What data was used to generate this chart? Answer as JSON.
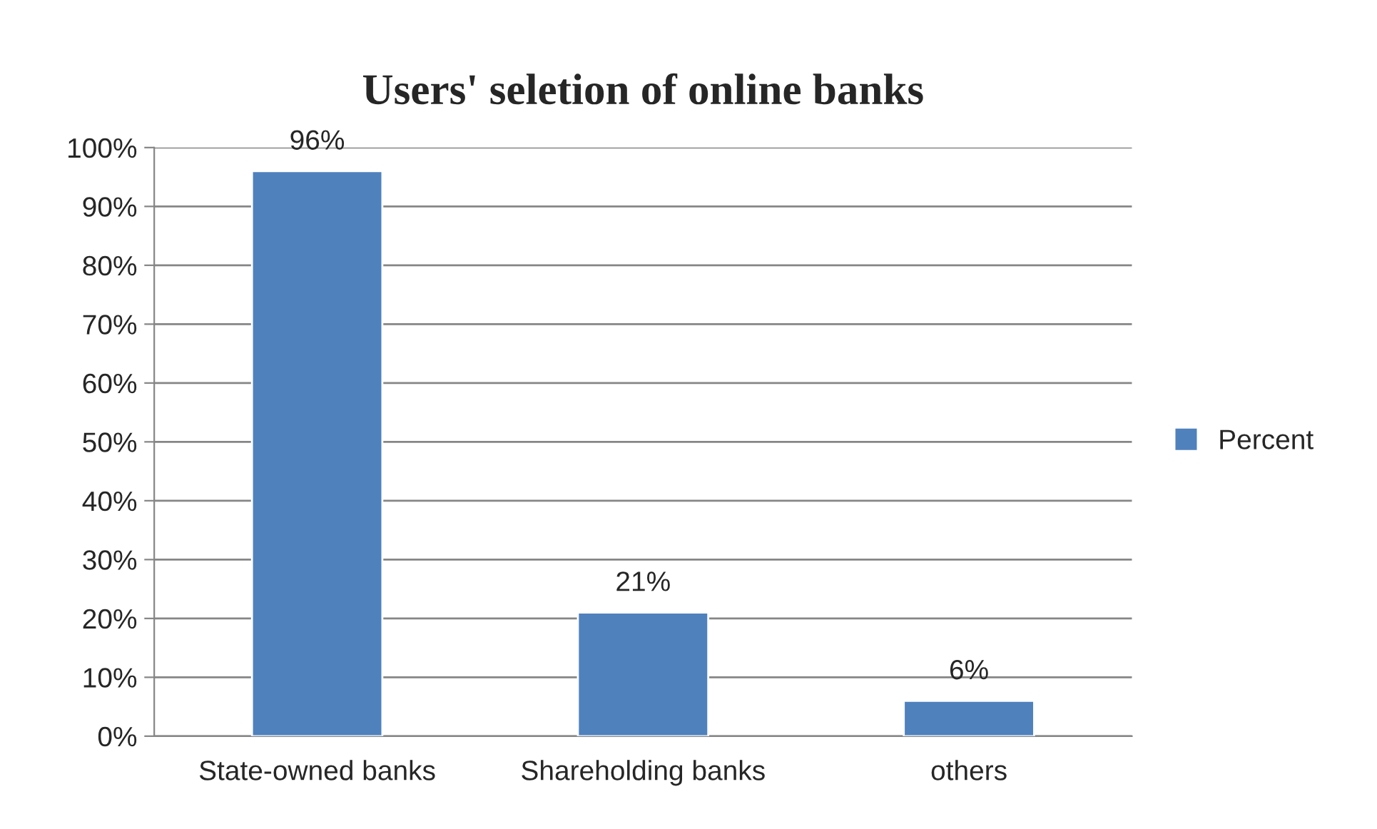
{
  "chart_data": {
    "type": "bar",
    "title": "Users' seletion of online banks",
    "categories": [
      "State-owned banks",
      "Shareholding banks",
      "others"
    ],
    "series": [
      {
        "name": "Percent",
        "color": "#4f81bd",
        "values": [
          96,
          21,
          6
        ],
        "value_labels": [
          "96%",
          "21%",
          "6%"
        ]
      }
    ],
    "ylim": [
      0,
      100
    ],
    "yticks": [
      {
        "value": 0,
        "label": "0%"
      },
      {
        "value": 10,
        "label": "10%"
      },
      {
        "value": 20,
        "label": "20%"
      },
      {
        "value": 30,
        "label": "30%"
      },
      {
        "value": 40,
        "label": "40%"
      },
      {
        "value": 50,
        "label": "50%"
      },
      {
        "value": 60,
        "label": "60%"
      },
      {
        "value": 70,
        "label": "70%"
      },
      {
        "value": 80,
        "label": "80%"
      },
      {
        "value": 90,
        "label": "90%"
      },
      {
        "value": 100,
        "label": "100%"
      }
    ],
    "grid": "y",
    "legend": "right"
  }
}
